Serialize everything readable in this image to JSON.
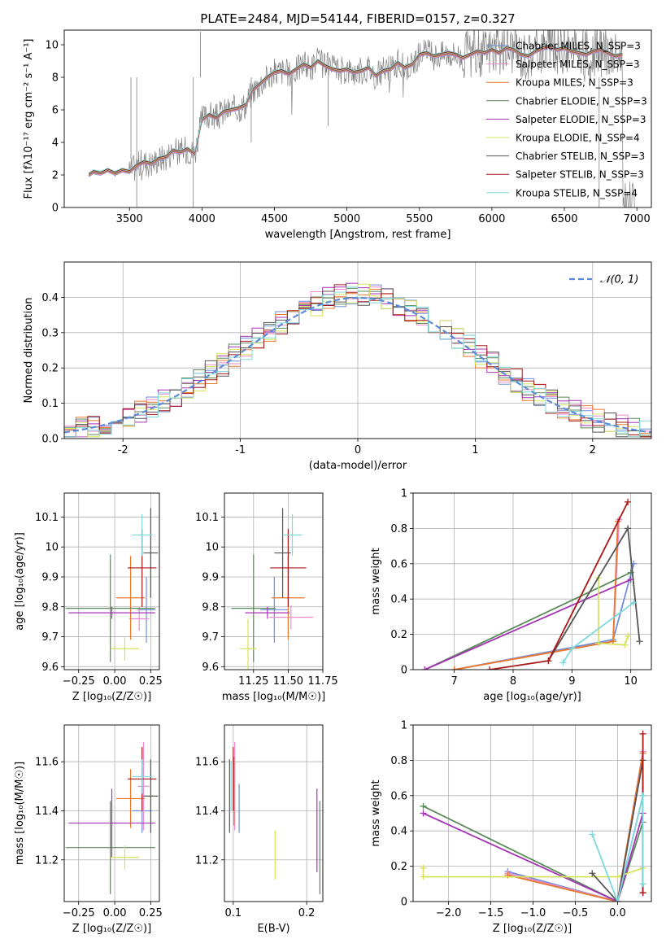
{
  "colors": {
    "chabrier_miles": "#6f8fd8",
    "salpeter_miles": "#ef8ad0",
    "kroupa_miles": "#e8782a",
    "chabrier_elodie": "#5b8a5b",
    "salpeter_elodie": "#a533b5",
    "kroupa_elodie": "#d6e35a",
    "chabrier_stelib": "#555555",
    "salpeter_stelib": "#a81818",
    "kroupa_stelib": "#7fd8dc",
    "data": "#808080",
    "normal": "#5b8bd8"
  },
  "chart_data": [
    {
      "id": "spectrum",
      "type": "line",
      "title": "PLATE=2484, MJD=54144, FIBERID=0157, z=0.327",
      "xlabel": "wavelength [Angstrom, rest frame]",
      "ylabel": "Flux [fλ10⁻¹⁷ erg cm⁻² s⁻¹ A⁻¹]",
      "xlim": [
        3050,
        7100
      ],
      "ylim": [
        0,
        10.9
      ],
      "xticks": [
        3500,
        4000,
        4500,
        5000,
        5500,
        6000,
        6500,
        7000
      ],
      "yticks": [
        0,
        2,
        4,
        6,
        8,
        10
      ],
      "grid": false,
      "legend_position": "top-right",
      "legend": [
        "Chabrier MILES, N_SSP=3",
        "Salpeter MILES, N_SSP=3",
        "Kroupa MILES, N_SSP=3",
        "Chabrier ELODIE, N_SSP=3",
        "Salpeter ELODIE, N_SSP=3",
        "Kroupa ELODIE, N_SSP=4",
        "Chabrier STELIB, N_SSP=3",
        "Salpeter STELIB, N_SSP=3",
        "Kroupa STELIB, N_SSP=4"
      ],
      "model_x": [
        3220,
        3250,
        3300,
        3350,
        3400,
        3450,
        3500,
        3550,
        3600,
        3650,
        3700,
        3750,
        3800,
        3850,
        3900,
        3950,
        4000,
        4050,
        4100,
        4150,
        4200,
        4250,
        4300,
        4350,
        4400,
        4450,
        4500,
        4550,
        4600,
        4650,
        4700,
        4750,
        4800,
        4850,
        4900,
        4950,
        5000,
        5050,
        5100,
        5150,
        5200,
        5250,
        5300,
        5350,
        5400,
        5450,
        5500,
        5550,
        5600,
        5650,
        5700,
        5750,
        5800,
        5850,
        5900,
        5950,
        6000,
        6050,
        6100,
        6150,
        6200,
        6250,
        6300,
        6350,
        6400,
        6450,
        6500,
        6550,
        6600,
        6650,
        6700,
        6750,
        6800,
        6850,
        6900
      ],
      "model_y": [
        2.0,
        2.2,
        2.1,
        2.3,
        2.1,
        2.3,
        2.2,
        2.6,
        2.8,
        2.7,
        3.0,
        3.1,
        3.5,
        3.4,
        3.6,
        3.3,
        5.4,
        5.7,
        5.5,
        5.9,
        6.0,
        6.1,
        6.3,
        7.2,
        7.6,
        8.0,
        8.3,
        8.4,
        8.2,
        8.5,
        8.8,
        8.6,
        9.0,
        8.7,
        8.5,
        8.4,
        8.5,
        8.3,
        8.4,
        8.6,
        8.1,
        8.4,
        8.5,
        8.9,
        8.6,
        8.8,
        9.4,
        9.5,
        9.3,
        9.4,
        9.5,
        9.4,
        9.2,
        9.4,
        9.6,
        9.5,
        9.7,
        9.5,
        9.8,
        9.7,
        9.4,
        9.3,
        9.6,
        9.8,
        9.9,
        9.7,
        9.8,
        9.6,
        9.5,
        9.4,
        9.6,
        9.7,
        9.5,
        9.3,
        9.4
      ]
    },
    {
      "id": "residuals",
      "type": "line",
      "xlabel": "(data-model)/error",
      "ylabel": "Normed distribution",
      "xlim": [
        -2.5,
        2.5
      ],
      "ylim": [
        0,
        0.5
      ],
      "xticks": [
        -2,
        -1,
        0,
        1,
        2
      ],
      "yticks": [
        0.0,
        0.1,
        0.2,
        0.3,
        0.4
      ],
      "grid": true,
      "legend_position": "top-right",
      "legend": [
        "𝒩(0, 1)"
      ],
      "bin_width": 0.1
    },
    {
      "id": "age_vs_z",
      "type": "scatter",
      "xlabel": "Z [log₁₀(Z/Z☉)]",
      "ylabel": "age  [log₁₀(age/yr)]",
      "xlim": [
        -0.35,
        0.31
      ],
      "ylim": [
        9.59,
        10.18
      ],
      "xticks": [
        -0.25,
        0.0,
        0.25
      ],
      "xticklabels": [
        "−0.25",
        "0.00",
        "0.25"
      ],
      "yticks": [
        9.6,
        9.7,
        9.8,
        9.9,
        10.0,
        10.1
      ],
      "grid": true,
      "points": [
        {
          "model": "chabrier_miles",
          "x": 0.22,
          "y": 9.79,
          "xerr": 0.06,
          "yerr": 0.11
        },
        {
          "model": "salpeter_miles",
          "x": 0.17,
          "y": 9.76,
          "xerr": 0.07,
          "yerr": 0.04
        },
        {
          "model": "kroupa_miles",
          "x": 0.11,
          "y": 9.83,
          "xerr": 0.1,
          "yerr": 0.14
        },
        {
          "model": "chabrier_elodie",
          "x": -0.03,
          "y": 9.795,
          "xerr": 0.31,
          "yerr": 0.18
        },
        {
          "model": "salpeter_elodie",
          "x": -0.02,
          "y": 9.78,
          "xerr": 0.3,
          "yerr": 0.02
        },
        {
          "model": "kroupa_elodie",
          "x": 0.07,
          "y": 9.66,
          "xerr": 0.1,
          "yerr": 0.04
        },
        {
          "model": "chabrier_stelib",
          "x": 0.25,
          "y": 9.98,
          "xerr": 0.05,
          "yerr": 0.15
        },
        {
          "model": "salpeter_stelib",
          "x": 0.19,
          "y": 9.93,
          "xerr": 0.1,
          "yerr": 0.13
        },
        {
          "model": "kroupa_stelib",
          "x": 0.19,
          "y": 10.04,
          "xerr": 0.07,
          "yerr": 0.07
        }
      ]
    },
    {
      "id": "age_vs_mass",
      "type": "scatter",
      "xlabel": "mass [log₁₀(M/M☉)]",
      "ylabel": "",
      "xlim": [
        11.04,
        11.75
      ],
      "ylim": [
        9.59,
        10.18
      ],
      "xticks": [
        11.25,
        11.5,
        11.75
      ],
      "xticklabels": [
        "11.25",
        "11.50",
        "11.75"
      ],
      "yticks": [
        9.6,
        9.7,
        9.8,
        9.9,
        10.0,
        10.1
      ],
      "grid": true,
      "points": [
        {
          "model": "chabrier_miles",
          "x": 11.4,
          "y": 9.79,
          "xerr": 0.1,
          "yerr": 0.11
        },
        {
          "model": "salpeter_miles",
          "x": 11.52,
          "y": 9.765,
          "xerr": 0.16,
          "yerr": 0.04
        },
        {
          "model": "kroupa_miles",
          "x": 11.5,
          "y": 9.83,
          "xerr": 0.12,
          "yerr": 0.14
        },
        {
          "model": "chabrier_elodie",
          "x": 11.25,
          "y": 9.795,
          "xerr": 0.16,
          "yerr": 0.18
        },
        {
          "model": "salpeter_elodie",
          "x": 11.35,
          "y": 9.78,
          "xerr": 0.16,
          "yerr": 0.02
        },
        {
          "model": "kroupa_elodie",
          "x": 11.21,
          "y": 9.66,
          "xerr": 0.06,
          "yerr": 0.1
        },
        {
          "model": "chabrier_stelib",
          "x": 11.46,
          "y": 9.98,
          "xerr": 0.06,
          "yerr": 0.15
        },
        {
          "model": "salpeter_stelib",
          "x": 11.5,
          "y": 9.93,
          "xerr": 0.13,
          "yerr": 0.13
        },
        {
          "model": "kroupa_stelib",
          "x": 11.53,
          "y": 10.04,
          "xerr": 0.07,
          "yerr": 0.07
        }
      ]
    },
    {
      "id": "massweight_vs_age",
      "type": "line",
      "xlabel": "age  [log₁₀(age/yr)]",
      "ylabel": "mass weight",
      "xlim": [
        6.3,
        10.35
      ],
      "ylim": [
        0,
        1.0
      ],
      "xticks": [
        7,
        8,
        9,
        10
      ],
      "yticks": [
        0.0,
        0.2,
        0.4,
        0.6,
        0.8,
        1.0
      ],
      "grid": true,
      "series": [
        {
          "model": "chabrier_miles",
          "x": [
            7.0,
            9.7,
            10.05
          ],
          "y": [
            0.0,
            0.17,
            0.6
          ]
        },
        {
          "model": "salpeter_miles",
          "x": [
            7.0,
            9.7,
            9.8
          ],
          "y": [
            0.0,
            0.16,
            0.85
          ]
        },
        {
          "model": "kroupa_miles",
          "x": [
            7.0,
            9.7,
            9.78
          ],
          "y": [
            0.0,
            0.16,
            0.84
          ]
        },
        {
          "model": "chabrier_elodie",
          "x": [
            6.5,
            10.0
          ],
          "y": [
            0.0,
            0.55
          ]
        },
        {
          "model": "salpeter_elodie",
          "x": [
            6.5,
            10.0
          ],
          "y": [
            0.0,
            0.51
          ]
        },
        {
          "model": "kroupa_elodie",
          "x": [
            9.45,
            9.45,
            9.9,
            9.95
          ],
          "y": [
            0.52,
            0.15,
            0.14,
            0.19
          ]
        },
        {
          "model": "chabrier_stelib",
          "x": [
            8.6,
            9.95,
            10.15
          ],
          "y": [
            0.05,
            0.8,
            0.16
          ]
        },
        {
          "model": "salpeter_stelib",
          "x": [
            7.6,
            8.6,
            9.95
          ],
          "y": [
            0.0,
            0.05,
            0.95
          ]
        },
        {
          "model": "kroupa_stelib",
          "x": [
            8.85,
            9.0,
            10.05
          ],
          "y": [
            0.04,
            0.12,
            0.38
          ]
        }
      ]
    },
    {
      "id": "mass_vs_z",
      "type": "scatter",
      "xlabel": "Z [log₁₀(Z/Z☉)]",
      "ylabel": "mass [log₁₀(M/M☉)]",
      "xlim": [
        -0.35,
        0.31
      ],
      "ylim": [
        11.03,
        11.75
      ],
      "xticks": [
        -0.25,
        0.0,
        0.25
      ],
      "xticklabels": [
        "−0.25",
        "0.00",
        "0.25"
      ],
      "yticks": [
        11.2,
        11.4,
        11.6
      ],
      "grid": true,
      "points": [
        {
          "model": "chabrier_miles",
          "x": 0.19,
          "y": 11.4,
          "xerr": 0.07,
          "yerr": 0.09
        },
        {
          "model": "salpeter_miles",
          "x": 0.2,
          "y": 11.5,
          "xerr": 0.04,
          "yerr": 0.18
        },
        {
          "model": "kroupa_miles",
          "x": 0.11,
          "y": 11.45,
          "xerr": 0.1,
          "yerr": 0.12
        },
        {
          "model": "chabrier_elodie",
          "x": -0.03,
          "y": 11.25,
          "xerr": 0.31,
          "yerr": 0.19
        },
        {
          "model": "salpeter_elodie",
          "x": -0.02,
          "y": 11.35,
          "xerr": 0.3,
          "yerr": 0.14
        },
        {
          "model": "kroupa_elodie",
          "x": 0.07,
          "y": 11.21,
          "xerr": 0.1,
          "yerr": 0.05
        },
        {
          "model": "chabrier_stelib",
          "x": 0.25,
          "y": 11.46,
          "xerr": 0.05,
          "yerr": 0.15
        },
        {
          "model": "salpeter_stelib",
          "x": 0.19,
          "y": 11.53,
          "xerr": 0.1,
          "yerr": 0.13
        },
        {
          "model": "kroupa_stelib",
          "x": 0.19,
          "y": 11.54,
          "xerr": 0.07,
          "yerr": 0.07
        }
      ]
    },
    {
      "id": "mass_vs_ebv",
      "type": "scatter",
      "xlabel": "E(B-V)",
      "ylabel": "",
      "xlim": [
        0.088,
        0.222
      ],
      "ylim": [
        11.03,
        11.75
      ],
      "xticks": [
        0.1,
        0.2
      ],
      "yticks": [
        11.2,
        11.4,
        11.6
      ],
      "grid": true,
      "points": [
        {
          "model": "chabrier_miles",
          "x": 0.108,
          "y": 11.41,
          "yerr": 0.1
        },
        {
          "model": "salpeter_miles",
          "x": 0.102,
          "y": 11.5,
          "yerr": 0.18
        },
        {
          "model": "kroupa_miles",
          "x": 0.101,
          "y": 11.48,
          "yerr": 0.14
        },
        {
          "model": "chabrier_elodie",
          "x": 0.218,
          "y": 11.25,
          "yerr": 0.19
        },
        {
          "model": "salpeter_elodie",
          "x": 0.214,
          "y": 11.32,
          "yerr": 0.17
        },
        {
          "model": "kroupa_elodie",
          "x": 0.157,
          "y": 11.22,
          "yerr": 0.1
        },
        {
          "model": "chabrier_stelib",
          "x": 0.095,
          "y": 11.46,
          "yerr": 0.15
        },
        {
          "model": "salpeter_stelib",
          "x": 0.1,
          "y": 11.53,
          "yerr": 0.13
        },
        {
          "model": "kroupa_stelib",
          "x": 0.097,
          "y": 11.5,
          "yerr": 0.1
        }
      ]
    },
    {
      "id": "massweight_vs_z",
      "type": "line",
      "xlabel": "Z [log₁₀(Z/Z☉)]",
      "ylabel": "mass weight",
      "xlim": [
        -2.42,
        0.4
      ],
      "ylim": [
        0,
        1.0
      ],
      "xticks": [
        -2.0,
        -1.5,
        -1.0,
        -0.5,
        0.0
      ],
      "xticklabels": [
        "−2.0",
        "−1.5",
        "−1.0",
        "−0.5",
        "0.0"
      ],
      "yticks": [
        0.0,
        0.2,
        0.4,
        0.6,
        0.8,
        1.0
      ],
      "grid": true,
      "series": [
        {
          "model": "chabrier_miles",
          "x": [
            -1.3,
            0.0,
            0.3
          ],
          "y": [
            0.17,
            0.0,
            0.6
          ]
        },
        {
          "model": "salpeter_miles",
          "x": [
            -1.3,
            0.0,
            0.3
          ],
          "y": [
            0.16,
            0.0,
            0.85
          ]
        },
        {
          "model": "kroupa_miles",
          "x": [
            -1.3,
            0.0,
            0.3
          ],
          "y": [
            0.15,
            0.0,
            0.84
          ]
        },
        {
          "model": "chabrier_elodie",
          "x": [
            -2.3,
            0.0,
            0.3
          ],
          "y": [
            0.54,
            0.0,
            0.45
          ]
        },
        {
          "model": "salpeter_elodie",
          "x": [
            -2.3,
            0.0,
            0.3
          ],
          "y": [
            0.5,
            0.0,
            0.5
          ]
        },
        {
          "model": "kroupa_elodie",
          "x": [
            -2.3,
            -2.3,
            0.0,
            0.3
          ],
          "y": [
            0.19,
            0.14,
            0.14,
            0.19
          ]
        },
        {
          "model": "chabrier_stelib",
          "x": [
            -0.3,
            0.0,
            0.3,
            0.3
          ],
          "y": [
            0.16,
            0.0,
            0.8,
            0.05
          ]
        },
        {
          "model": "salpeter_stelib",
          "x": [
            0.3,
            0.3,
            0.3
          ],
          "y": [
            0.05,
            0.95,
            0.05
          ]
        },
        {
          "model": "kroupa_stelib",
          "x": [
            -0.3,
            0.0,
            0.3,
            0.3
          ],
          "y": [
            0.38,
            0.0,
            0.6,
            0.1
          ]
        }
      ]
    }
  ]
}
